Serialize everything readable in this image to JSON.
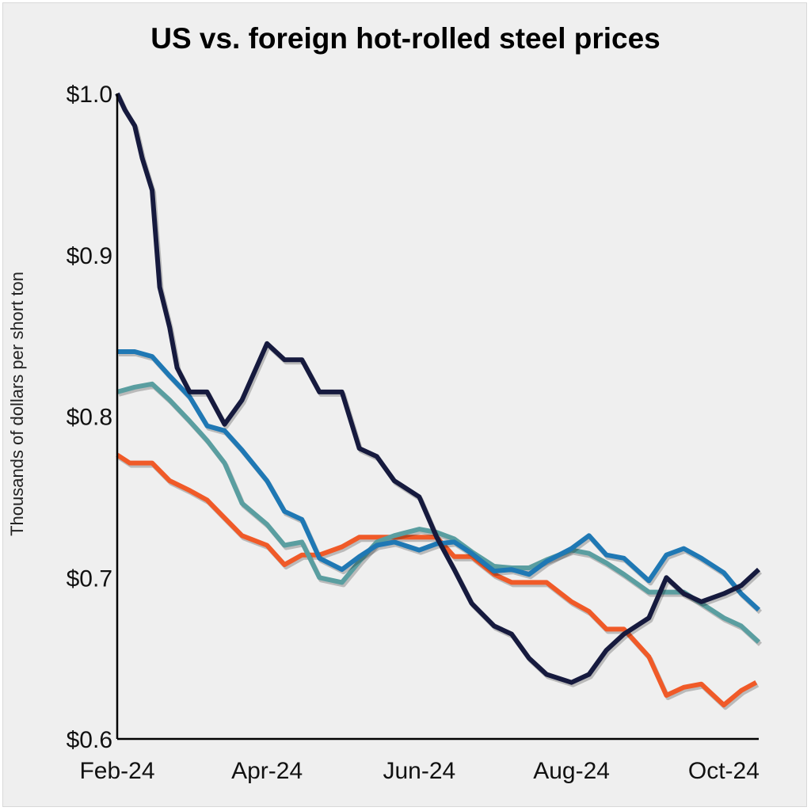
{
  "chart_data": {
    "type": "line",
    "title": "US vs. foreign hot-rolled steel prices",
    "xlabel": "",
    "ylabel": "Thousands of dollars per short ton",
    "ylim": [
      0.6,
      1.0
    ],
    "yticks": [
      1.0,
      0.9,
      0.8,
      0.7,
      0.6
    ],
    "ytick_labels": [
      "$1.0",
      "$0.9",
      "$0.8",
      "$0.7",
      "$0.6"
    ],
    "xlim": [
      "2024-02-01",
      "2024-10-15"
    ],
    "xticks": [
      "2024-02-01",
      "2024-04-01",
      "2024-06-01",
      "2024-08-01",
      "2024-10-01"
    ],
    "xtick_labels": [
      "Feb-24",
      "Apr-24",
      "Jun-24",
      "Aug-24",
      "Oct-24"
    ],
    "grid": false,
    "legend": "none",
    "series": [
      {
        "color": "#f05a28",
        "x": [
          "2024-02-01",
          "2024-02-06",
          "2024-02-15",
          "2024-02-22",
          "2024-03-01",
          "2024-03-08",
          "2024-03-15",
          "2024-03-22",
          "2024-04-01",
          "2024-04-08",
          "2024-04-15",
          "2024-04-22",
          "2024-05-01",
          "2024-05-08",
          "2024-05-15",
          "2024-05-22",
          "2024-06-01",
          "2024-06-08",
          "2024-06-15",
          "2024-06-22",
          "2024-07-01",
          "2024-07-08",
          "2024-07-15",
          "2024-07-22",
          "2024-08-01",
          "2024-08-08",
          "2024-08-15",
          "2024-08-22",
          "2024-09-01",
          "2024-09-08",
          "2024-09-15",
          "2024-09-22",
          "2024-10-01",
          "2024-10-08",
          "2024-10-14"
        ],
        "y": [
          0.776,
          0.771,
          0.771,
          0.76,
          0.754,
          0.748,
          0.737,
          0.726,
          0.72,
          0.708,
          0.714,
          0.714,
          0.719,
          0.725,
          0.725,
          0.725,
          0.725,
          0.725,
          0.713,
          0.713,
          0.702,
          0.697,
          0.697,
          0.697,
          0.685,
          0.679,
          0.668,
          0.668,
          0.651,
          0.627,
          0.632,
          0.634,
          0.621,
          0.63,
          0.635
        ]
      },
      {
        "color": "#5a9ea0",
        "x": [
          "2024-02-01",
          "2024-02-08",
          "2024-02-15",
          "2024-02-22",
          "2024-03-01",
          "2024-03-08",
          "2024-03-15",
          "2024-03-22",
          "2024-04-01",
          "2024-04-08",
          "2024-04-15",
          "2024-04-22",
          "2024-05-01",
          "2024-05-08",
          "2024-05-15",
          "2024-05-22",
          "2024-06-01",
          "2024-06-08",
          "2024-06-15",
          "2024-06-22",
          "2024-07-01",
          "2024-07-08",
          "2024-07-15",
          "2024-07-22",
          "2024-08-01",
          "2024-08-08",
          "2024-08-15",
          "2024-08-22",
          "2024-09-01",
          "2024-09-08",
          "2024-09-15",
          "2024-09-22",
          "2024-10-01",
          "2024-10-08",
          "2024-10-15"
        ],
        "y": [
          0.815,
          0.818,
          0.82,
          0.81,
          0.797,
          0.785,
          0.771,
          0.746,
          0.733,
          0.72,
          0.722,
          0.7,
          0.697,
          0.71,
          0.722,
          0.726,
          0.73,
          0.728,
          0.724,
          0.716,
          0.707,
          0.706,
          0.706,
          0.711,
          0.717,
          0.715,
          0.709,
          0.702,
          0.691,
          0.691,
          0.691,
          0.684,
          0.675,
          0.67,
          0.66
        ]
      },
      {
        "color": "#1f78b4",
        "x": [
          "2024-02-01",
          "2024-02-08",
          "2024-02-15",
          "2024-02-22",
          "2024-03-01",
          "2024-03-08",
          "2024-03-15",
          "2024-03-22",
          "2024-04-01",
          "2024-04-08",
          "2024-04-15",
          "2024-04-22",
          "2024-05-01",
          "2024-05-08",
          "2024-05-15",
          "2024-05-22",
          "2024-06-01",
          "2024-06-08",
          "2024-06-15",
          "2024-06-22",
          "2024-07-01",
          "2024-07-08",
          "2024-07-15",
          "2024-07-22",
          "2024-08-01",
          "2024-08-08",
          "2024-08-15",
          "2024-08-22",
          "2024-09-01",
          "2024-09-08",
          "2024-09-15",
          "2024-09-22",
          "2024-10-01",
          "2024-10-08",
          "2024-10-15"
        ],
        "y": [
          0.84,
          0.84,
          0.837,
          0.825,
          0.812,
          0.794,
          0.791,
          0.779,
          0.76,
          0.741,
          0.736,
          0.712,
          0.705,
          0.713,
          0.72,
          0.722,
          0.717,
          0.721,
          0.722,
          0.715,
          0.704,
          0.705,
          0.702,
          0.71,
          0.718,
          0.726,
          0.714,
          0.712,
          0.698,
          0.714,
          0.718,
          0.712,
          0.703,
          0.69,
          0.68
        ]
      },
      {
        "color": "#161a3e",
        "x": [
          "2024-02-01",
          "2024-02-04",
          "2024-02-08",
          "2024-02-11",
          "2024-02-15",
          "2024-02-18",
          "2024-02-22",
          "2024-02-25",
          "2024-03-01",
          "2024-03-08",
          "2024-03-15",
          "2024-03-22",
          "2024-04-01",
          "2024-04-08",
          "2024-04-15",
          "2024-04-22",
          "2024-05-01",
          "2024-05-08",
          "2024-05-15",
          "2024-05-22",
          "2024-06-01",
          "2024-06-08",
          "2024-06-15",
          "2024-06-22",
          "2024-07-01",
          "2024-07-08",
          "2024-07-15",
          "2024-07-22",
          "2024-08-01",
          "2024-08-08",
          "2024-08-15",
          "2024-08-22",
          "2024-09-01",
          "2024-09-08",
          "2024-09-15",
          "2024-09-22",
          "2024-10-01",
          "2024-10-08",
          "2024-10-15"
        ],
        "y": [
          1.0,
          0.99,
          0.98,
          0.96,
          0.94,
          0.88,
          0.855,
          0.83,
          0.815,
          0.815,
          0.795,
          0.81,
          0.845,
          0.835,
          0.835,
          0.815,
          0.815,
          0.78,
          0.775,
          0.76,
          0.75,
          0.725,
          0.705,
          0.684,
          0.67,
          0.665,
          0.65,
          0.64,
          0.635,
          0.64,
          0.655,
          0.665,
          0.675,
          0.7,
          0.69,
          0.685,
          0.69,
          0.695,
          0.705
        ]
      }
    ]
  }
}
